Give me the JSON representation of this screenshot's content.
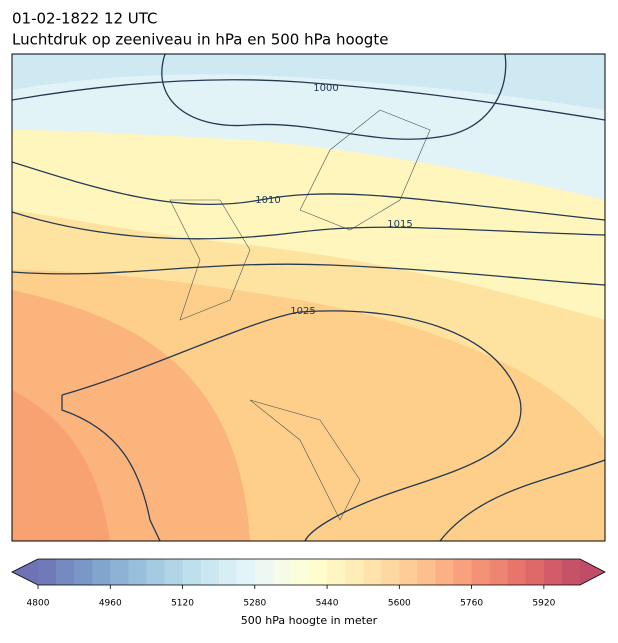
{
  "header": {
    "timestamp": "01-02-1822 12 UTC",
    "title": "Luchtdruk op zeeniveau in hPa en 500 hPa hoogte"
  },
  "map": {
    "contour_labels": [
      "1000",
      "1010",
      "1015",
      "1025"
    ]
  },
  "colorbar": {
    "label": "500 hPa hoogte in meter",
    "lim": [
      4800,
      6000
    ],
    "ticks": [
      4800,
      4960,
      5120,
      5280,
      5440,
      5600,
      5760,
      5920
    ]
  }
}
